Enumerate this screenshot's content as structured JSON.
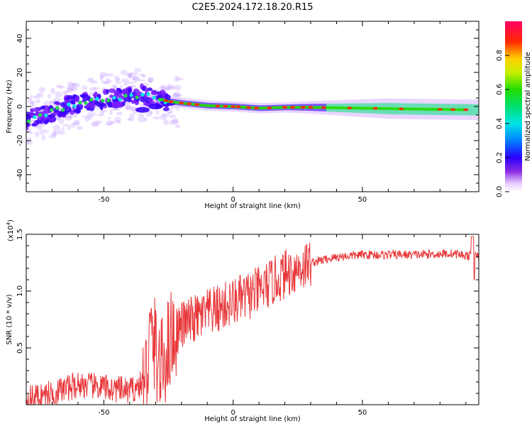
{
  "title": "C2E5.2024.172.18.20.R15",
  "chart_data": [
    {
      "type": "heatmap",
      "xlabel": "Height of straight line (km)",
      "ylabel": "Frequency (Hz)",
      "xlim": [
        -80,
        95
      ],
      "ylim": [
        -50,
        50
      ],
      "x_ticks": [
        -50,
        0,
        50
      ],
      "y_ticks": [
        -40,
        -20,
        0,
        20,
        40
      ],
      "colorbar": {
        "label": "Normalized spectral amplitude",
        "range": [
          0,
          1
        ],
        "ticks": [
          "0.0",
          "0.2",
          "0.4",
          "0.6",
          "0.8"
        ]
      },
      "ridge": [
        {
          "x": -80,
          "y": -8
        },
        {
          "x": -75,
          "y": -5
        },
        {
          "x": -70,
          "y": -3
        },
        {
          "x": -65,
          "y": 0
        },
        {
          "x": -60,
          "y": 2
        },
        {
          "x": -55,
          "y": 3
        },
        {
          "x": -50,
          "y": 4
        },
        {
          "x": -45,
          "y": 5
        },
        {
          "x": -40,
          "y": 6
        },
        {
          "x": -35,
          "y": 7
        },
        {
          "x": -30,
          "y": 5
        },
        {
          "x": -25,
          "y": 3
        },
        {
          "x": -20,
          "y": 2
        },
        {
          "x": -10,
          "y": 0.5
        },
        {
          "x": 0,
          "y": 0
        },
        {
          "x": 10,
          "y": -1
        },
        {
          "x": 20,
          "y": -0.5
        },
        {
          "x": 30,
          "y": -0.5
        },
        {
          "x": 50,
          "y": -1
        },
        {
          "x": 70,
          "y": -1.5
        },
        {
          "x": 95,
          "y": -2
        }
      ],
      "secondary_ridge": [
        {
          "x": -35,
          "y": -2
        },
        {
          "x": -30,
          "y": 0
        },
        {
          "x": -25,
          "y": 2
        }
      ]
    },
    {
      "type": "line",
      "xlabel": "Height of straight line (km)",
      "ylabel": "SNR (10 * v/v)",
      "y_multiplier_label": "(x10",
      "y_multiplier_exp": "4",
      "xlim": [
        -80,
        95
      ],
      "ylim": [
        0,
        1.5
      ],
      "x_ticks": [
        -50,
        0,
        50
      ],
      "y_ticks": [
        "0.5",
        "1.0",
        "1.5"
      ],
      "color": "#e8373a",
      "envelope": [
        {
          "x": -80,
          "y": 0.05
        },
        {
          "x": -70,
          "y": 0.1
        },
        {
          "x": -60,
          "y": 0.18
        },
        {
          "x": -50,
          "y": 0.15
        },
        {
          "x": -40,
          "y": 0.12
        },
        {
          "x": -34,
          "y": 0.2
        },
        {
          "x": -32,
          "y": 0.6
        },
        {
          "x": -30,
          "y": 0.5
        },
        {
          "x": -28,
          "y": 0.3
        },
        {
          "x": -24,
          "y": 0.6
        },
        {
          "x": -20,
          "y": 0.7
        },
        {
          "x": -10,
          "y": 0.8
        },
        {
          "x": 0,
          "y": 0.9
        },
        {
          "x": 10,
          "y": 1.0
        },
        {
          "x": 20,
          "y": 1.15
        },
        {
          "x": 30,
          "y": 1.25
        },
        {
          "x": 40,
          "y": 1.3
        },
        {
          "x": 50,
          "y": 1.32
        },
        {
          "x": 70,
          "y": 1.32
        },
        {
          "x": 85,
          "y": 1.33
        },
        {
          "x": 95,
          "y": 1.3
        }
      ]
    }
  ]
}
